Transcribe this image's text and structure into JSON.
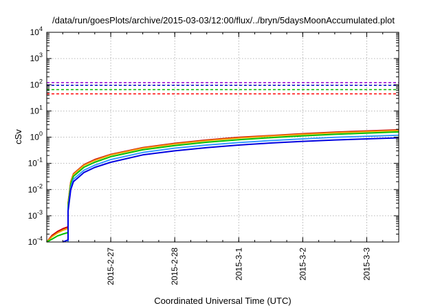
{
  "chart_data": {
    "type": "line",
    "title": "/data/run/goesPlots/archive/2015-03-03/12:00/flux/../bryn/5daysMoonAccumulated.plot",
    "xlabel": "Coordinated Universal Time (UTC)",
    "ylabel": "cSv",
    "y_scale": "log",
    "ylim": [
      0.0001,
      10000
    ],
    "y_ticks": [
      {
        "value": 0.0001,
        "base": "10",
        "exp": "-4"
      },
      {
        "value": 0.001,
        "base": "10",
        "exp": "-3"
      },
      {
        "value": 0.01,
        "base": "10",
        "exp": "-2"
      },
      {
        "value": 0.1,
        "base": "10",
        "exp": "-1"
      },
      {
        "value": 1,
        "base": "10",
        "exp": "0"
      },
      {
        "value": 10,
        "base": "10",
        "exp": "1"
      },
      {
        "value": 100,
        "base": "10",
        "exp": "2"
      },
      {
        "value": 1000,
        "base": "10",
        "exp": "3"
      },
      {
        "value": 10000,
        "base": "10",
        "exp": "4"
      }
    ],
    "x_unit": "days",
    "xlim": [
      "2015-02-26",
      "2015-03-03 12:00"
    ],
    "x_ticks": [
      {
        "value": "2015-02-27",
        "label": "2015-2-27"
      },
      {
        "value": "2015-02-28",
        "label": "2015-2-28"
      },
      {
        "value": "2015-03-01",
        "label": "2015-3-1"
      },
      {
        "value": "2015-03-02",
        "label": "2015-3-2"
      },
      {
        "value": "2015-03-03",
        "label": "2015-3-3"
      }
    ],
    "grid": true,
    "thresholds": [
      {
        "color": "#9400d3",
        "value": 120
      },
      {
        "color": "#0000cc",
        "value": 95
      },
      {
        "color": "#00bb00",
        "value": 65
      },
      {
        "color": "#ff0000",
        "value": 45
      }
    ],
    "series": [
      {
        "color": "#cc0000",
        "points": [
          [
            "2015-02-26 00:00",
            0.0001
          ],
          [
            "2015-02-26 02:00",
            0.00018
          ],
          [
            "2015-02-26 04:00",
            0.00025
          ],
          [
            "2015-02-26 06:00",
            0.00032
          ],
          [
            "2015-02-26 08:00",
            0.00038
          ],
          [
            "2015-02-26 08:00",
            0.003
          ],
          [
            "2015-02-26 09:00",
            0.02
          ],
          [
            "2015-02-26 10:00",
            0.04
          ],
          [
            "2015-02-26 14:00",
            0.09
          ],
          [
            "2015-02-26 18:00",
            0.14
          ],
          [
            "2015-02-27 00:00",
            0.22
          ],
          [
            "2015-02-27 12:00",
            0.4
          ],
          [
            "2015-02-28 00:00",
            0.58
          ],
          [
            "2015-02-28 12:00",
            0.78
          ],
          [
            "2015-03-01 00:00",
            0.98
          ],
          [
            "2015-03-01 12:00",
            1.15
          ],
          [
            "2015-03-02 00:00",
            1.35
          ],
          [
            "2015-03-02 12:00",
            1.55
          ],
          [
            "2015-03-03 00:00",
            1.72
          ],
          [
            "2015-03-03 12:00",
            1.9
          ]
        ]
      },
      {
        "color": "#f0a000",
        "points": [
          [
            "2015-02-26 00:00",
            0.0001
          ],
          [
            "2015-02-26 02:00",
            0.00016
          ],
          [
            "2015-02-26 04:00",
            0.00022
          ],
          [
            "2015-02-26 06:00",
            0.00028
          ],
          [
            "2015-02-26 08:00",
            0.00033
          ],
          [
            "2015-02-26 08:00",
            0.0028
          ],
          [
            "2015-02-26 09:00",
            0.019
          ],
          [
            "2015-02-26 10:00",
            0.038
          ],
          [
            "2015-02-26 14:00",
            0.085
          ],
          [
            "2015-02-26 18:00",
            0.13
          ],
          [
            "2015-02-27 00:00",
            0.21
          ],
          [
            "2015-02-27 12:00",
            0.38
          ],
          [
            "2015-02-28 00:00",
            0.55
          ],
          [
            "2015-02-28 12:00",
            0.74
          ],
          [
            "2015-03-01 00:00",
            0.93
          ],
          [
            "2015-03-01 12:00",
            1.1
          ],
          [
            "2015-03-02 00:00",
            1.28
          ],
          [
            "2015-03-02 12:00",
            1.47
          ],
          [
            "2015-03-03 00:00",
            1.63
          ],
          [
            "2015-03-03 12:00",
            1.8
          ]
        ]
      },
      {
        "color": "#00c000",
        "points": [
          [
            "2015-02-26 00:00",
            0.0001
          ],
          [
            "2015-02-26 02:00",
            0.00013
          ],
          [
            "2015-02-26 04:00",
            0.00017
          ],
          [
            "2015-02-26 06:00",
            0.0002
          ],
          [
            "2015-02-26 08:00",
            0.00023
          ],
          [
            "2015-02-26 08:00",
            0.0024
          ],
          [
            "2015-02-26 09:00",
            0.016
          ],
          [
            "2015-02-26 10:00",
            0.032
          ],
          [
            "2015-02-26 14:00",
            0.072
          ],
          [
            "2015-02-26 18:00",
            0.11
          ],
          [
            "2015-02-27 00:00",
            0.18
          ],
          [
            "2015-02-27 12:00",
            0.33
          ],
          [
            "2015-02-28 00:00",
            0.48
          ],
          [
            "2015-02-28 12:00",
            0.64
          ],
          [
            "2015-03-01 00:00",
            0.8
          ],
          [
            "2015-03-01 12:00",
            0.96
          ],
          [
            "2015-03-02 00:00",
            1.12
          ],
          [
            "2015-03-02 12:00",
            1.28
          ],
          [
            "2015-03-03 00:00",
            1.43
          ],
          [
            "2015-03-03 12:00",
            1.58
          ]
        ]
      },
      {
        "color": "#3399ff",
        "points": [
          [
            "2015-02-26 08:00",
            0.0001
          ],
          [
            "2015-02-26 08:00",
            0.0018
          ],
          [
            "2015-02-26 09:00",
            0.012
          ],
          [
            "2015-02-26 10:00",
            0.025
          ],
          [
            "2015-02-26 14:00",
            0.055
          ],
          [
            "2015-02-26 18:00",
            0.085
          ],
          [
            "2015-02-27 00:00",
            0.14
          ],
          [
            "2015-02-27 12:00",
            0.26
          ],
          [
            "2015-02-28 00:00",
            0.38
          ],
          [
            "2015-02-28 12:00",
            0.5
          ],
          [
            "2015-03-01 00:00",
            0.62
          ],
          [
            "2015-03-01 12:00",
            0.74
          ],
          [
            "2015-03-02 00:00",
            0.86
          ],
          [
            "2015-03-02 12:00",
            0.98
          ],
          [
            "2015-03-03 00:00",
            1.08
          ],
          [
            "2015-03-03 12:00",
            1.18
          ]
        ]
      },
      {
        "color": "#0000e0",
        "points": [
          [
            "2015-02-26 06:00",
            0.0001
          ],
          [
            "2015-02-26 07:00",
            0.00011
          ],
          [
            "2015-02-26 08:00",
            0.00012
          ],
          [
            "2015-02-26 08:00",
            0.0015
          ],
          [
            "2015-02-26 09:00",
            0.01
          ],
          [
            "2015-02-26 10:00",
            0.02
          ],
          [
            "2015-02-26 14:00",
            0.045
          ],
          [
            "2015-02-26 18:00",
            0.07
          ],
          [
            "2015-02-27 00:00",
            0.11
          ],
          [
            "2015-02-27 12:00",
            0.21
          ],
          [
            "2015-02-28 00:00",
            0.3
          ],
          [
            "2015-02-28 12:00",
            0.4
          ],
          [
            "2015-03-01 00:00",
            0.5
          ],
          [
            "2015-03-01 12:00",
            0.6
          ],
          [
            "2015-03-02 00:00",
            0.69
          ],
          [
            "2015-03-02 12:00",
            0.78
          ],
          [
            "2015-03-03 00:00",
            0.86
          ],
          [
            "2015-03-03 12:00",
            0.94
          ]
        ]
      }
    ]
  }
}
